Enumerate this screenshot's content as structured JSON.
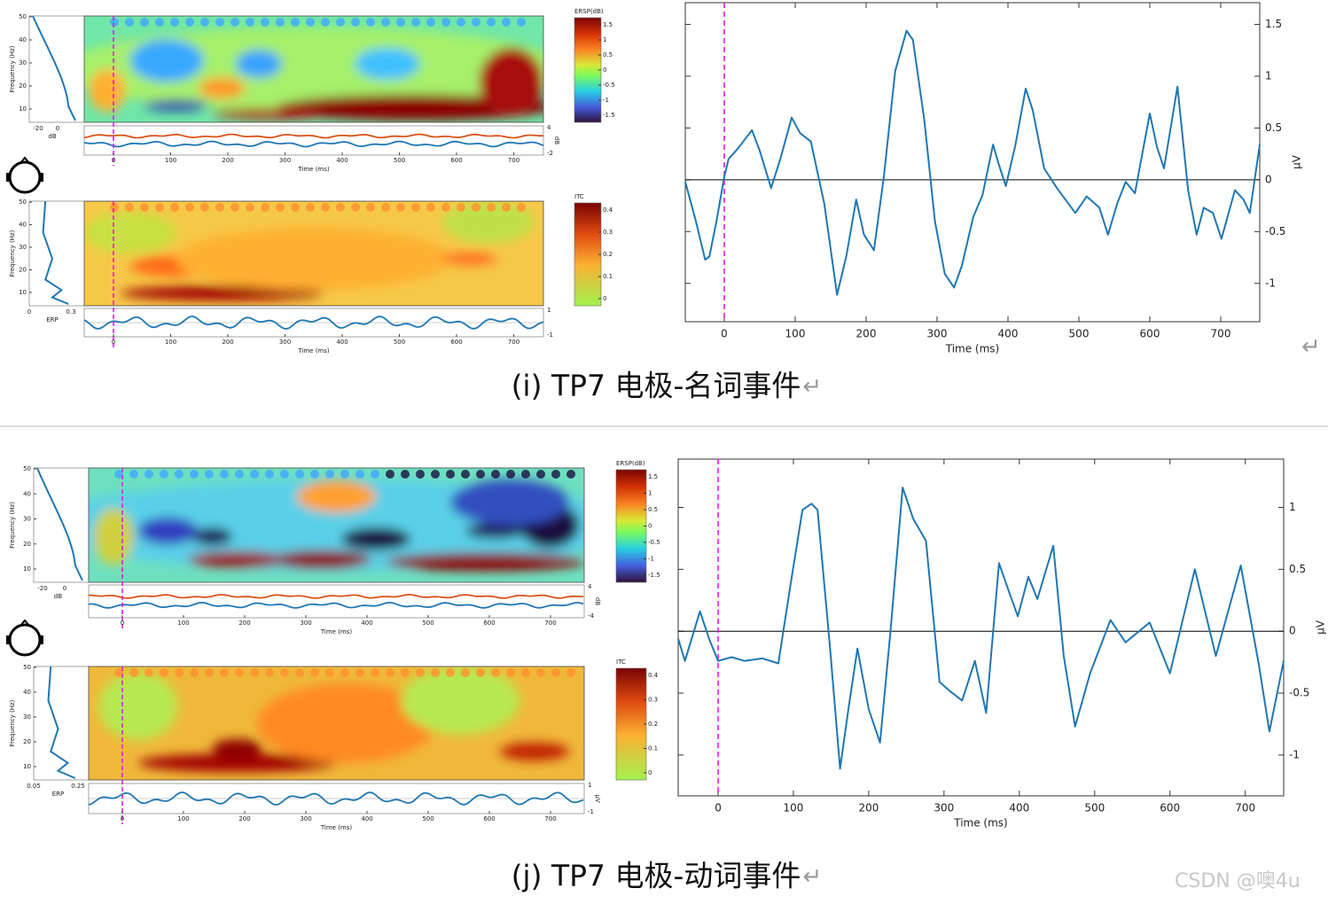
{
  "chart_data": [
    {
      "type": "line",
      "x_label": "Time (ms)",
      "y_label": "μV",
      "x": [
        -55,
        -40,
        -27,
        -21,
        -11,
        0,
        6,
        19,
        39,
        50,
        66,
        79,
        95,
        107,
        122,
        141,
        159,
        172,
        186,
        197,
        211,
        225,
        241,
        257,
        266,
        282,
        297,
        311,
        324,
        335,
        351,
        364,
        379,
        387,
        397,
        410,
        425,
        435,
        451,
        469,
        495,
        511,
        529,
        541,
        554,
        566,
        579,
        600,
        610,
        620,
        639,
        654,
        666,
        676,
        689,
        701,
        720,
        732,
        741,
        755
      ],
      "series": [
        {
          "color": "#1f77b4",
          "values": [
            -0.02,
            -0.4,
            -0.77,
            -0.74,
            -0.4,
            0.03,
            0.2,
            0.3,
            0.48,
            0.28,
            -0.08,
            0.2,
            0.6,
            0.45,
            0.37,
            -0.23,
            -1.11,
            -0.74,
            -0.19,
            -0.53,
            -0.68,
            0.03,
            1.05,
            1.44,
            1.35,
            0.58,
            -0.4,
            -0.91,
            -1.04,
            -0.83,
            -0.36,
            -0.15,
            0.34,
            0.15,
            -0.06,
            0.32,
            0.88,
            0.67,
            0.11,
            -0.08,
            -0.32,
            -0.16,
            -0.27,
            -0.53,
            -0.23,
            -0.02,
            -0.13,
            0.64,
            0.32,
            0.11,
            0.9,
            -0.1,
            -0.53,
            -0.27,
            -0.32,
            -0.57,
            -0.1,
            -0.19,
            -0.32,
            0.34
          ]
        }
      ],
      "xlim": [
        -55,
        755
      ],
      "ylim": [
        -1.37,
        1.71
      ],
      "xticks": [
        0,
        100,
        200,
        300,
        400,
        500,
        600,
        700
      ],
      "yticks": [
        -1,
        -0.5,
        0,
        0.5,
        1,
        1.5
      ],
      "event_line": {
        "x": 0,
        "color": "#e619e6"
      }
    },
    {
      "type": "line",
      "x_label": "Time (ms)",
      "y_label": "μV",
      "x": [
        -53,
        -44,
        -24,
        -12,
        0,
        18,
        35,
        59,
        80,
        96,
        112,
        124,
        132,
        149,
        162,
        173,
        185,
        200,
        215,
        229,
        245,
        259,
        276,
        294,
        309,
        324,
        341,
        356,
        373,
        385,
        398,
        412,
        424,
        445,
        459,
        474,
        494,
        521,
        541,
        573,
        600,
        633,
        661,
        694,
        718,
        732,
        751
      ],
      "series": [
        {
          "color": "#1f77b4",
          "values": [
            -0.06,
            -0.24,
            0.16,
            -0.06,
            -0.24,
            -0.21,
            -0.24,
            -0.22,
            -0.26,
            0.37,
            0.98,
            1.03,
            0.98,
            -0.16,
            -1.11,
            -0.63,
            -0.14,
            -0.63,
            -0.9,
            0.01,
            1.16,
            0.91,
            0.73,
            -0.41,
            -0.49,
            -0.56,
            -0.24,
            -0.66,
            0.55,
            0.34,
            0.12,
            0.44,
            0.26,
            0.69,
            -0.2,
            -0.77,
            -0.34,
            0.09,
            -0.09,
            0.07,
            -0.34,
            0.5,
            -0.2,
            0.53,
            -0.27,
            -0.81,
            -0.24
          ]
        }
      ],
      "xlim": [
        -53,
        751
      ],
      "ylim": [
        -1.33,
        1.39
      ],
      "xticks": [
        0,
        100,
        200,
        300,
        400,
        500,
        600,
        700
      ],
      "yticks": [
        -1,
        -0.5,
        0,
        0.5,
        1
      ],
      "event_line": {
        "x": 0,
        "color": "#e619e6"
      }
    }
  ],
  "panels": [
    {
      "ersp": {
        "colorbar_title": "ERSP(dB)",
        "colorbar_ticks": [
          1.5,
          1,
          0.5,
          0,
          -0.5,
          -1,
          -1.5
        ],
        "freq_label": "Frequency (Hz)",
        "freq_ticks": [
          50,
          40,
          30,
          20,
          10
        ],
        "side_ticks": [
          -20,
          0
        ],
        "side_label": "dB",
        "time_ticks": [
          0,
          100,
          200,
          300,
          400,
          500,
          600,
          700
        ],
        "time_label": "Time (ms)",
        "strip_ticks": [
          4,
          -2
        ],
        "strip_unit": "dB"
      },
      "itc": {
        "colorbar_title": "ITC",
        "colorbar_ticks": [
          0.4,
          0.3,
          0.2,
          0.1,
          0
        ],
        "freq_label": "Frequency (Hz)",
        "freq_ticks": [
          50,
          40,
          30,
          20,
          10
        ],
        "side_ticks": [
          0,
          0.3
        ],
        "side_label": "ERP",
        "time_ticks": [
          0,
          100,
          200,
          300,
          400,
          500,
          600,
          700
        ],
        "time_label": "Time (ms)",
        "strip_ticks": [
          1,
          -1
        ]
      },
      "caption": "(i) TP7 电极-名词事件"
    },
    {
      "ersp": {
        "colorbar_title": "ERSP(dB)",
        "colorbar_ticks": [
          1.5,
          1,
          0.5,
          0,
          -0.5,
          -1,
          -1.5
        ],
        "freq_label": "Frequency (Hz)",
        "freq_ticks": [
          50,
          40,
          30,
          20,
          10
        ],
        "side_ticks": [
          -20,
          0
        ],
        "side_label": "dB",
        "time_ticks": [
          0,
          100,
          200,
          300,
          400,
          500,
          600,
          700
        ],
        "time_label": "Time (ms)",
        "strip_ticks": [
          4,
          -4
        ],
        "strip_unit": "dB"
      },
      "itc": {
        "colorbar_title": "ITC",
        "colorbar_ticks": [
          0.4,
          0.3,
          0.2,
          0.1,
          0
        ],
        "freq_label": "Frequency (Hz)",
        "freq_ticks": [
          50,
          40,
          30,
          20,
          10
        ],
        "side_ticks": [
          0.05,
          0.25
        ],
        "side_label": "ERP",
        "time_ticks": [
          0,
          100,
          200,
          300,
          400,
          500,
          600,
          700
        ],
        "time_label": "Time (ms)",
        "strip_ticks": [
          1,
          -1
        ],
        "strip_unit": "μV"
      },
      "caption": "(j) TP7 电极-动词事件"
    }
  ],
  "return_mark": "↵",
  "watermark": "CSDN @噢4u"
}
